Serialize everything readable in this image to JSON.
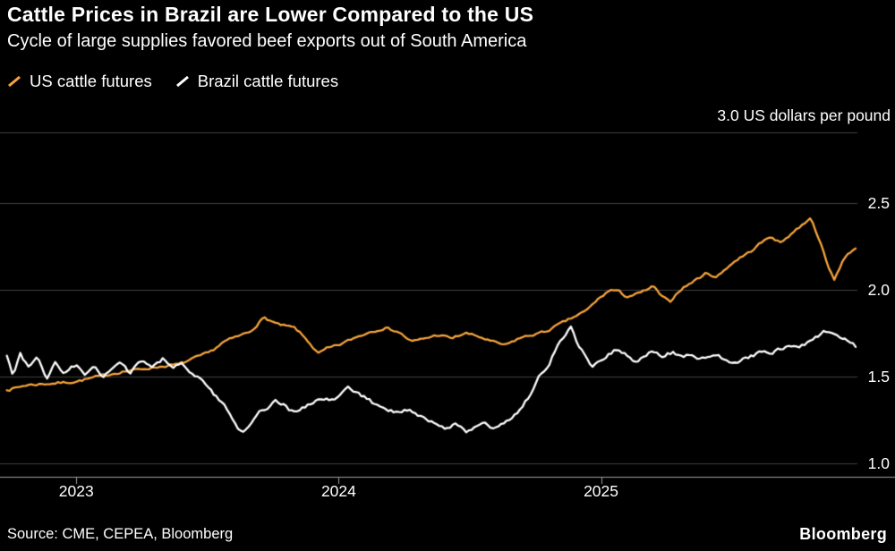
{
  "header": {
    "title": "Cattle Prices in Brazil are Lower Compared to the US",
    "subtitle": "Cycle of large supplies favored beef exports out of South America"
  },
  "legend": [
    {
      "label": "US cattle futures",
      "color": "#F7A43B"
    },
    {
      "label": "Brazil cattle futures",
      "color": "#FFFFFF"
    }
  ],
  "footer": {
    "source": "Source: CME, CEPEA, Bloomberg",
    "brand": "Bloomberg"
  },
  "colors": {
    "background": "#000000",
    "grid": "#3f3f3f",
    "axis": "#9e9e9e",
    "text": "#FFFFFF"
  },
  "chart_data": {
    "type": "line",
    "title": "Cattle Prices in Brazil are Lower Compared to the US",
    "subtitle": "Cycle of large supplies favored beef exports out of South America",
    "unit_label": "3.0 US dollars per pound",
    "ylabel": "US dollars per pound",
    "grid": true,
    "legend_position": "top-left",
    "ylim": [
      0.92,
      2.91
    ],
    "y_ticks": [
      2.5,
      2.0,
      1.5,
      1.0
    ],
    "x_ticks": [
      "2023",
      "2024",
      "2025"
    ],
    "x_tick_pos": [
      0.089,
      0.395,
      0.701
    ],
    "x_range": [
      "Sep 2022",
      "Dec 2025"
    ],
    "series": [
      {
        "name": "US cattle futures",
        "color": "#F7A43B",
        "points": [
          [
            0.008,
            1.42
          ],
          [
            0.031,
            1.45
          ],
          [
            0.063,
            1.46
          ],
          [
            0.089,
            1.47
          ],
          [
            0.115,
            1.5
          ],
          [
            0.146,
            1.53
          ],
          [
            0.177,
            1.55
          ],
          [
            0.209,
            1.57
          ],
          [
            0.224,
            1.6
          ],
          [
            0.245,
            1.64
          ],
          [
            0.261,
            1.7
          ],
          [
            0.277,
            1.73
          ],
          [
            0.292,
            1.76
          ],
          [
            0.308,
            1.84
          ],
          [
            0.324,
            1.8
          ],
          [
            0.344,
            1.78
          ],
          [
            0.36,
            1.7
          ],
          [
            0.371,
            1.63
          ],
          [
            0.381,
            1.66
          ],
          [
            0.395,
            1.68
          ],
          [
            0.412,
            1.72
          ],
          [
            0.433,
            1.76
          ],
          [
            0.449,
            1.78
          ],
          [
            0.464,
            1.76
          ],
          [
            0.48,
            1.7
          ],
          [
            0.496,
            1.72
          ],
          [
            0.511,
            1.74
          ],
          [
            0.527,
            1.72
          ],
          [
            0.543,
            1.75
          ],
          [
            0.558,
            1.73
          ],
          [
            0.574,
            1.7
          ],
          [
            0.59,
            1.68
          ],
          [
            0.605,
            1.72
          ],
          [
            0.621,
            1.74
          ],
          [
            0.637,
            1.76
          ],
          [
            0.652,
            1.8
          ],
          [
            0.668,
            1.84
          ],
          [
            0.684,
            1.88
          ],
          [
            0.694,
            1.93
          ],
          [
            0.701,
            1.96
          ],
          [
            0.712,
            2.0
          ],
          [
            0.722,
            1.99
          ],
          [
            0.731,
            1.96
          ],
          [
            0.746,
            1.98
          ],
          [
            0.762,
            2.02
          ],
          [
            0.772,
            1.96
          ],
          [
            0.781,
            1.93
          ],
          [
            0.793,
            2.0
          ],
          [
            0.809,
            2.05
          ],
          [
            0.825,
            2.1
          ],
          [
            0.835,
            2.07
          ],
          [
            0.848,
            2.13
          ],
          [
            0.861,
            2.18
          ],
          [
            0.875,
            2.22
          ],
          [
            0.887,
            2.27
          ],
          [
            0.9,
            2.31
          ],
          [
            0.91,
            2.27
          ],
          [
            0.924,
            2.33
          ],
          [
            0.937,
            2.38
          ],
          [
            0.945,
            2.42
          ],
          [
            0.955,
            2.3
          ],
          [
            0.966,
            2.13
          ],
          [
            0.973,
            2.06
          ],
          [
            0.983,
            2.17
          ],
          [
            0.992,
            2.22
          ],
          [
            0.998,
            2.24
          ]
        ]
      },
      {
        "name": "Brazil cattle futures",
        "color": "#FFFFFF",
        "points": [
          [
            0.008,
            1.62
          ],
          [
            0.015,
            1.5
          ],
          [
            0.023,
            1.64
          ],
          [
            0.033,
            1.55
          ],
          [
            0.044,
            1.61
          ],
          [
            0.054,
            1.48
          ],
          [
            0.065,
            1.58
          ],
          [
            0.075,
            1.52
          ],
          [
            0.089,
            1.57
          ],
          [
            0.099,
            1.5
          ],
          [
            0.11,
            1.56
          ],
          [
            0.12,
            1.49
          ],
          [
            0.13,
            1.54
          ],
          [
            0.141,
            1.58
          ],
          [
            0.151,
            1.52
          ],
          [
            0.165,
            1.59
          ],
          [
            0.177,
            1.55
          ],
          [
            0.19,
            1.6
          ],
          [
            0.2,
            1.55
          ],
          [
            0.214,
            1.57
          ],
          [
            0.224,
            1.51
          ],
          [
            0.235,
            1.48
          ],
          [
            0.245,
            1.42
          ],
          [
            0.256,
            1.36
          ],
          [
            0.266,
            1.3
          ],
          [
            0.275,
            1.22
          ],
          [
            0.282,
            1.17
          ],
          [
            0.29,
            1.22
          ],
          [
            0.301,
            1.29
          ],
          [
            0.311,
            1.32
          ],
          [
            0.322,
            1.36
          ],
          [
            0.332,
            1.33
          ],
          [
            0.342,
            1.29
          ],
          [
            0.353,
            1.32
          ],
          [
            0.365,
            1.35
          ],
          [
            0.376,
            1.38
          ],
          [
            0.386,
            1.36
          ],
          [
            0.397,
            1.39
          ],
          [
            0.407,
            1.44
          ],
          [
            0.418,
            1.4
          ],
          [
            0.428,
            1.37
          ],
          [
            0.441,
            1.33
          ],
          [
            0.451,
            1.31
          ],
          [
            0.463,
            1.29
          ],
          [
            0.475,
            1.31
          ],
          [
            0.485,
            1.28
          ],
          [
            0.499,
            1.25
          ],
          [
            0.511,
            1.22
          ],
          [
            0.522,
            1.2
          ],
          [
            0.532,
            1.23
          ],
          [
            0.543,
            1.18
          ],
          [
            0.553,
            1.21
          ],
          [
            0.566,
            1.23
          ],
          [
            0.576,
            1.2
          ],
          [
            0.587,
            1.23
          ],
          [
            0.597,
            1.26
          ],
          [
            0.607,
            1.31
          ],
          [
            0.618,
            1.39
          ],
          [
            0.628,
            1.49
          ],
          [
            0.639,
            1.56
          ],
          [
            0.649,
            1.66
          ],
          [
            0.66,
            1.75
          ],
          [
            0.666,
            1.78
          ],
          [
            0.673,
            1.7
          ],
          [
            0.683,
            1.61
          ],
          [
            0.691,
            1.55
          ],
          [
            0.701,
            1.59
          ],
          [
            0.711,
            1.63
          ],
          [
            0.72,
            1.66
          ],
          [
            0.731,
            1.63
          ],
          [
            0.741,
            1.58
          ],
          [
            0.752,
            1.62
          ],
          [
            0.762,
            1.65
          ],
          [
            0.772,
            1.62
          ],
          [
            0.785,
            1.64
          ],
          [
            0.795,
            1.61
          ],
          [
            0.806,
            1.63
          ],
          [
            0.816,
            1.6
          ],
          [
            0.827,
            1.62
          ],
          [
            0.837,
            1.63
          ],
          [
            0.848,
            1.59
          ],
          [
            0.858,
            1.57
          ],
          [
            0.868,
            1.6
          ],
          [
            0.879,
            1.62
          ],
          [
            0.889,
            1.65
          ],
          [
            0.9,
            1.63
          ],
          [
            0.91,
            1.66
          ],
          [
            0.921,
            1.68
          ],
          [
            0.931,
            1.66
          ],
          [
            0.942,
            1.7
          ],
          [
            0.952,
            1.73
          ],
          [
            0.962,
            1.76
          ],
          [
            0.971,
            1.74
          ],
          [
            0.981,
            1.72
          ],
          [
            0.992,
            1.7
          ],
          [
            0.998,
            1.67
          ]
        ]
      }
    ]
  }
}
